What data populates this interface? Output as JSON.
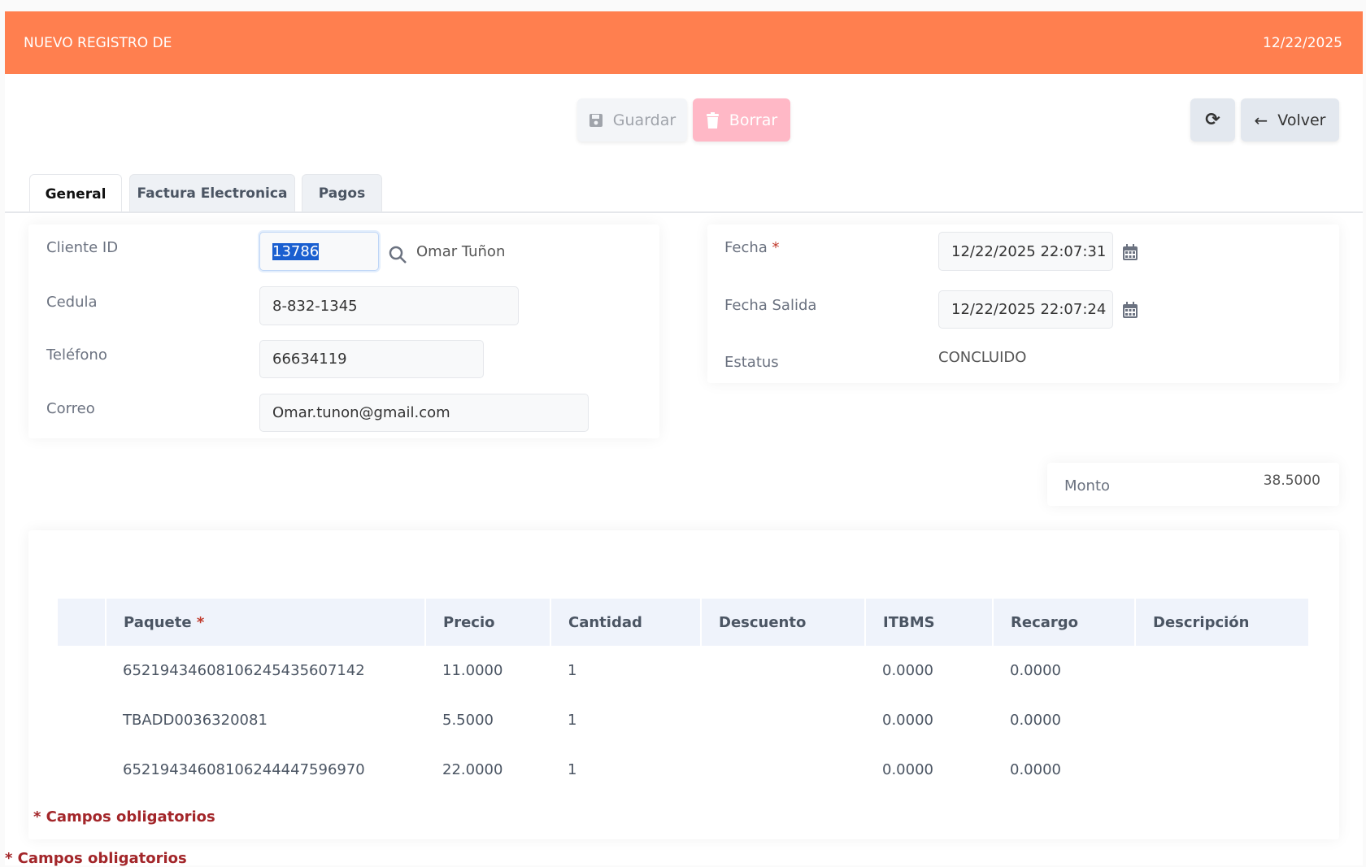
{
  "header": {
    "title": "NUEVO REGISTRO DE",
    "date": "12/22/2025"
  },
  "toolbar": {
    "save": "Guardar",
    "delete": "Borrar",
    "back": "Volver"
  },
  "tabs": [
    {
      "label": "General"
    },
    {
      "label": "Factura Electronica"
    },
    {
      "label": "Pagos"
    }
  ],
  "client": {
    "id_label": "Cliente ID",
    "id_value": "13786",
    "name": "Omar Tuñon",
    "cedula_label": "Cedula",
    "cedula": "8-832-1345",
    "phone_label": "Teléfono",
    "phone": "66634119",
    "email_label": "Correo",
    "email": "Omar.tunon@gmail.com"
  },
  "dates": {
    "fecha_label": "Fecha",
    "fecha": "12/22/2025 22:07:31",
    "salida_label": "Fecha Salida",
    "salida": "12/22/2025 22:07:24",
    "status_label": "Estatus",
    "status": "CONCLUIDO",
    "req": "*"
  },
  "monto": {
    "label": "Monto",
    "value": "38.5000"
  },
  "table": {
    "headers": [
      "Paquete",
      "Precio",
      "Cantidad",
      "Descuento",
      "ITBMS",
      "Recargo",
      "Descripción"
    ],
    "rows": [
      [
        "65219434608106245435607142",
        "11.0000",
        "1",
        "",
        "0.0000",
        "0.0000",
        ""
      ],
      [
        "TBADD0036320081",
        "5.5000",
        "1",
        "",
        "0.0000",
        "0.0000",
        ""
      ],
      [
        "65219434608106244447596970",
        "22.0000",
        "1",
        "",
        "0.0000",
        "0.0000",
        ""
      ]
    ]
  },
  "notes": {
    "required": "* Campos obligatorios"
  },
  "colors": {
    "header": "#ff7f4f",
    "delete": "#ffb8c6",
    "required": "#a3262a"
  }
}
